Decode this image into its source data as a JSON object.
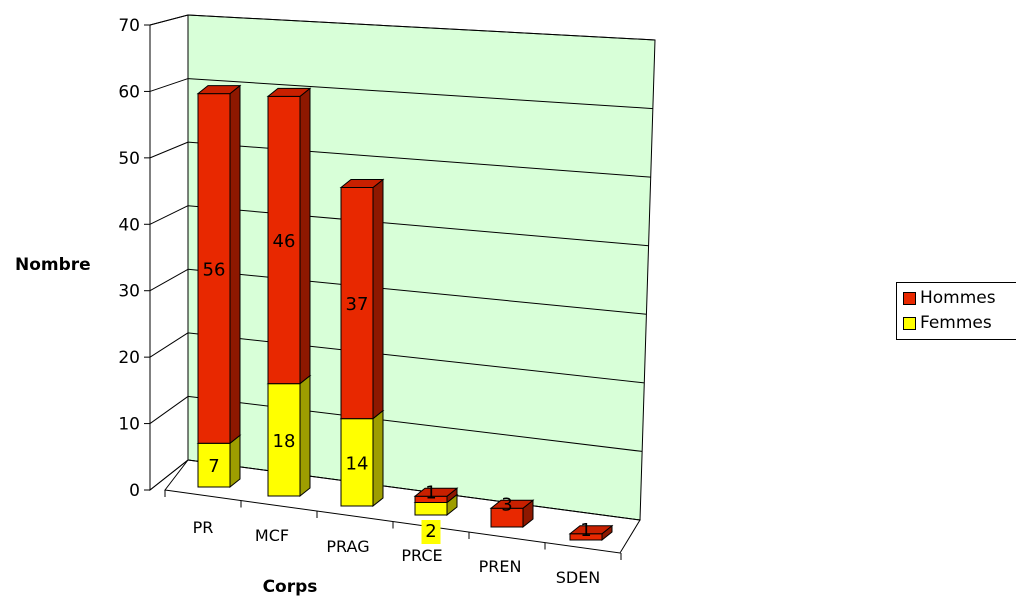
{
  "chart_data": {
    "type": "bar",
    "stacked": true,
    "three_d": true,
    "title": "",
    "xlabel": "Corps",
    "ylabel": "Nombre",
    "ylim": [
      0,
      70
    ],
    "yticks": [
      "0",
      "10",
      "20",
      "30",
      "40",
      "50",
      "60",
      "70"
    ],
    "categories": [
      "PR",
      "MCF",
      "PRAG",
      "PRCE",
      "PREN",
      "SDEN"
    ],
    "series": [
      {
        "name": "Femmes",
        "values": [
          7,
          18,
          14,
          2,
          0,
          0
        ],
        "labels": [
          "7",
          "18",
          "14",
          "2",
          "",
          ""
        ]
      },
      {
        "name": "Hommes",
        "values": [
          56,
          46,
          37,
          1,
          3,
          1
        ],
        "labels": [
          "56",
          "46",
          "37",
          "1",
          "3",
          "1"
        ]
      }
    ],
    "legend_position": "right",
    "gridlines": true,
    "colors": {
      "hommes_front": "#e82800",
      "hommes_side": "#8e1800",
      "hommes_top": "#c82000",
      "femmes_front": "#ffff00",
      "femmes_side": "#9e9e00",
      "femmes_top": "#d8d800",
      "back_wall": "#d8ffd8",
      "label_bg": "#ffff00"
    }
  },
  "legend": {
    "items": [
      {
        "label": "Hommes",
        "color": "#e82800"
      },
      {
        "label": "Femmes",
        "color": "#ffff00"
      }
    ]
  }
}
